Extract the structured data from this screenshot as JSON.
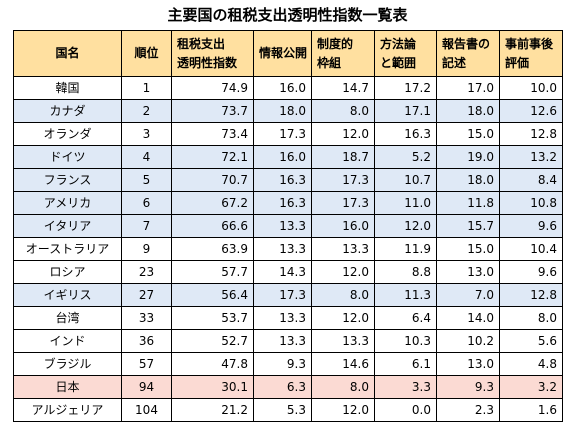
{
  "title": "主要国の租税支出透明性指数一覧表",
  "colors": {
    "header_bg": "#ffe0a0",
    "row_blue": "#dfe9f6",
    "row_pink": "#fbdad3",
    "row_white": "#ffffff"
  },
  "headers": [
    {
      "line1": "国名",
      "line2": ""
    },
    {
      "line1": "順位",
      "line2": ""
    },
    {
      "line1": "租税支出",
      "line2": "透明性指数"
    },
    {
      "line1": "情報公開",
      "line2": ""
    },
    {
      "line1": "制度的",
      "line2": "枠組"
    },
    {
      "line1": "方法論",
      "line2": "と範囲"
    },
    {
      "line1": "報告書の",
      "line2": "記述"
    },
    {
      "line1": "事前事後",
      "line2": "評価"
    }
  ],
  "rows": [
    {
      "tone": "white",
      "cells": [
        "韓国",
        "1",
        "74.9",
        "16.0",
        "14.7",
        "17.2",
        "17.0",
        "10.0"
      ]
    },
    {
      "tone": "blue",
      "cells": [
        "カナダ",
        "2",
        "73.7",
        "18.0",
        "8.0",
        "17.1",
        "18.0",
        "12.6"
      ]
    },
    {
      "tone": "white",
      "cells": [
        "オランダ",
        "3",
        "73.4",
        "17.3",
        "12.0",
        "16.3",
        "15.0",
        "12.8"
      ]
    },
    {
      "tone": "blue",
      "cells": [
        "ドイツ",
        "4",
        "72.1",
        "16.0",
        "18.7",
        "5.2",
        "19.0",
        "13.2"
      ]
    },
    {
      "tone": "blue",
      "cells": [
        "フランス",
        "5",
        "70.7",
        "16.3",
        "17.3",
        "10.7",
        "18.0",
        "8.4"
      ]
    },
    {
      "tone": "blue",
      "cells": [
        "アメリカ",
        "6",
        "67.2",
        "16.3",
        "17.3",
        "11.0",
        "11.8",
        "10.8"
      ]
    },
    {
      "tone": "blue",
      "cells": [
        "イタリア",
        "7",
        "66.6",
        "13.3",
        "16.0",
        "12.0",
        "15.7",
        "9.6"
      ]
    },
    {
      "tone": "white",
      "cells": [
        "オーストラリア",
        "9",
        "63.9",
        "13.3",
        "13.3",
        "11.9",
        "15.0",
        "10.4"
      ]
    },
    {
      "tone": "white",
      "cells": [
        "ロシア",
        "23",
        "57.7",
        "14.3",
        "12.0",
        "8.8",
        "13.0",
        "9.6"
      ]
    },
    {
      "tone": "blue",
      "cells": [
        "イギリス",
        "27",
        "56.4",
        "17.3",
        "8.0",
        "11.3",
        "7.0",
        "12.8"
      ]
    },
    {
      "tone": "white",
      "cells": [
        "台湾",
        "33",
        "53.7",
        "13.3",
        "12.0",
        "6.4",
        "14.0",
        "8.0"
      ]
    },
    {
      "tone": "white",
      "cells": [
        "インド",
        "36",
        "52.7",
        "13.3",
        "13.3",
        "10.3",
        "10.2",
        "5.6"
      ]
    },
    {
      "tone": "white",
      "cells": [
        "ブラジル",
        "57",
        "47.8",
        "9.3",
        "14.6",
        "6.1",
        "13.0",
        "4.8"
      ]
    },
    {
      "tone": "pink",
      "cells": [
        "日本",
        "94",
        "30.1",
        "6.3",
        "8.0",
        "3.3",
        "9.3",
        "3.2"
      ]
    },
    {
      "tone": "white",
      "cells": [
        "アルジェリア",
        "104",
        "21.2",
        "5.3",
        "12.0",
        "0.0",
        "2.3",
        "1.6"
      ]
    }
  ]
}
